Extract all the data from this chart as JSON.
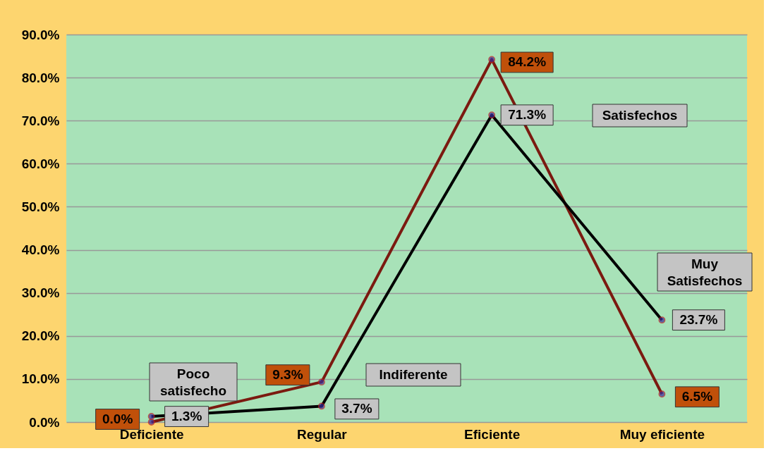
{
  "chart_data": {
    "type": "line",
    "categories": [
      "Deficiente",
      "Regular",
      "Eficiente",
      "Muy eficiente"
    ],
    "series": [
      {
        "color": "#7b1a10",
        "values": [
          0.0,
          9.3,
          84.2,
          6.5
        ],
        "value_labels": [
          "0.0%",
          "9.3%",
          "84.2%",
          "6.5%"
        ]
      },
      {
        "color": "#000000",
        "values": [
          1.3,
          3.7,
          71.3,
          23.7
        ],
        "value_labels": [
          "1.3%",
          "3.7%",
          "71.3%",
          "23.7%"
        ]
      }
    ],
    "ylim": [
      0,
      90
    ],
    "yticks": [
      {
        "value": 0,
        "label": "0.0%"
      },
      {
        "value": 10,
        "label": "10.0%"
      },
      {
        "value": 20,
        "label": "20.0%"
      },
      {
        "value": 30,
        "label": "30.0%"
      },
      {
        "value": 40,
        "label": "40.0%"
      },
      {
        "value": 50,
        "label": "50.0%"
      },
      {
        "value": 60,
        "label": "60.0%"
      },
      {
        "value": 70,
        "label": "70.0%"
      },
      {
        "value": 80,
        "label": "80.0%"
      },
      {
        "value": 90,
        "label": "90.0%"
      }
    ],
    "grid": "y",
    "marker": "circle",
    "line_style": "solid",
    "annotations": [
      "Poco satisfecho",
      "Indiferente",
      "Satisfechos",
      "Muy Satisfechos"
    ]
  }
}
